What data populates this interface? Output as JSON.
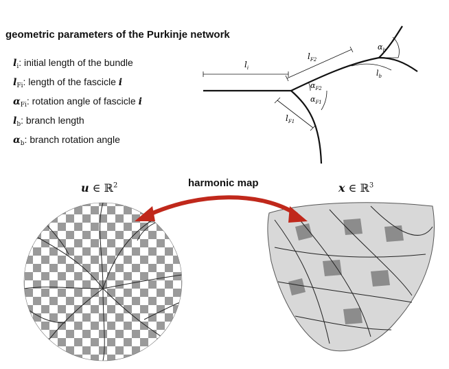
{
  "header": {
    "title": "geometric parameters of the Purkinje network"
  },
  "params": [
    {
      "symbol": "l",
      "sub": "i",
      "desc": ": initial length of the bundle",
      "suffix": ""
    },
    {
      "symbol": "l",
      "sub": "Fi",
      "desc": ": length of the fascicle ",
      "suffix": "i"
    },
    {
      "symbol": "α",
      "sub": "Fi",
      "desc": ": rotation angle of fascicle ",
      "suffix": "i"
    },
    {
      "symbol": "l",
      "sub": "b",
      "desc": ": branch length",
      "suffix": ""
    },
    {
      "symbol": "α",
      "sub": "b",
      "desc": ": branch rotation angle",
      "suffix": ""
    }
  ],
  "diagram": {
    "label_li": "l",
    "label_li_sub": "i",
    "label_lf2": "l",
    "label_lf2_sub": "F2",
    "label_lf1": "l",
    "label_lf1_sub": "F1",
    "label_af2": "α",
    "label_af2_sub": "F2",
    "label_af1": "α",
    "label_af1_sub": "F1",
    "label_ab": "α",
    "label_ab_sub": "b",
    "label_lb": "l",
    "label_lb_sub": "b"
  },
  "mapping": {
    "arrow_label": "harmonic map",
    "left_var": "u",
    "left_space": " ∈ ℝ",
    "left_exp": "2",
    "right_var": "x",
    "right_space": " ∈ ℝ",
    "right_exp": "3",
    "arrow_color": "#c0281b"
  }
}
